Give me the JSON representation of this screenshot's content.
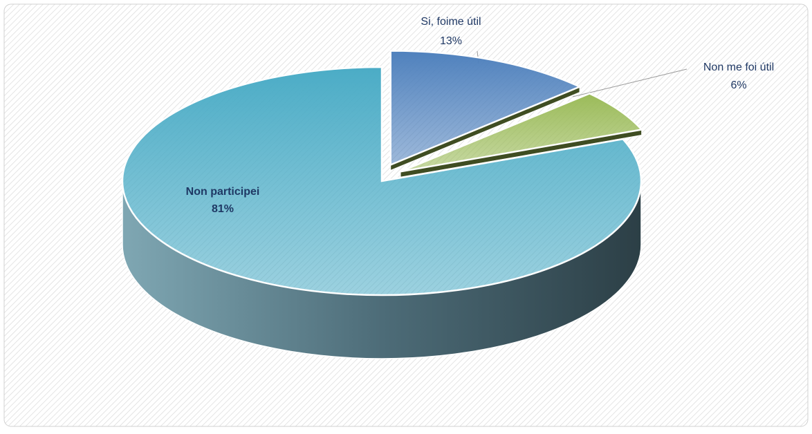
{
  "chart_data": {
    "type": "pie",
    "categories": [
      "Si, foime útil",
      "Non me foi útil",
      "Non participei"
    ],
    "values": [
      13,
      6,
      81
    ],
    "value_labels": [
      "13%",
      "6%",
      "81%"
    ],
    "colors": [
      "#4f81bd",
      "#9bbb59",
      "#4bacc6"
    ]
  }
}
